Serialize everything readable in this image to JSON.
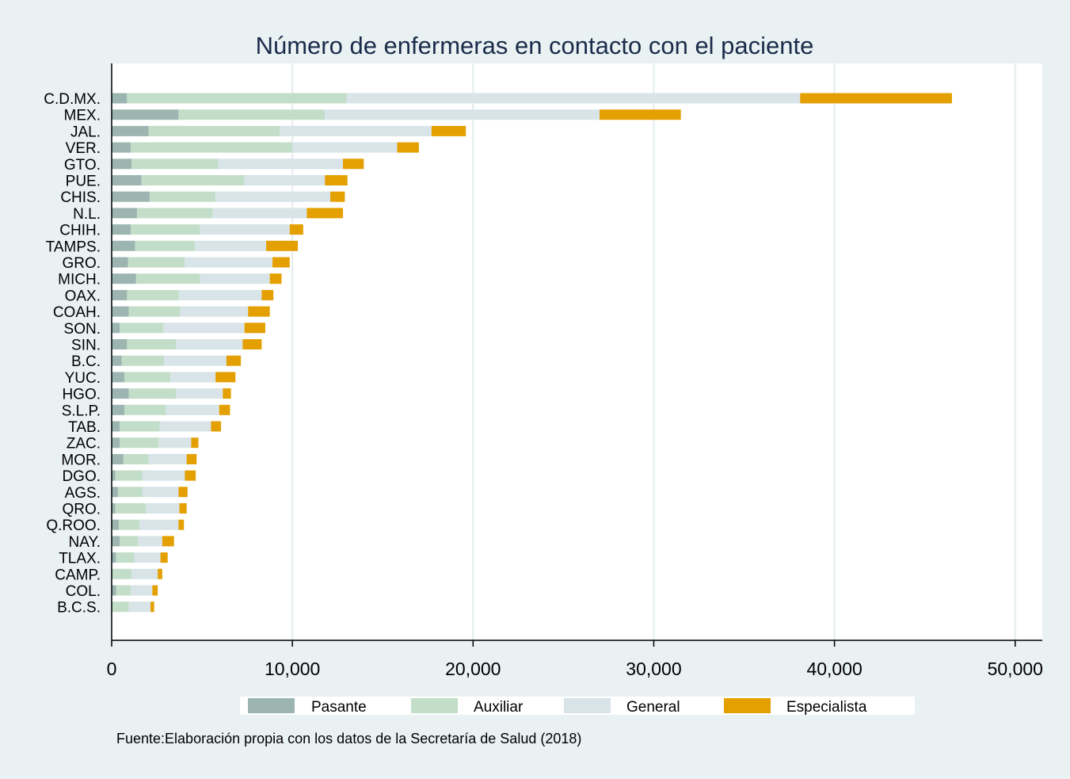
{
  "chart_data": {
    "type": "bar",
    "orientation": "horizontal",
    "stacked": true,
    "title": "Número de enfermeras en contacto con el paciente",
    "source": "Fuente:Elaboración propia con los datos de la Secretaría de Salud (2018)",
    "categories": [
      "C.D.MX.",
      "MEX.",
      "JAL.",
      "VER.",
      "GTO.",
      "PUE.",
      "CHIS.",
      "N.L.",
      "CHIH.",
      "TAMPS.",
      "GRO.",
      "MICH.",
      "OAX.",
      "COAH.",
      "SON.",
      "SIN.",
      "B.C.",
      "YUC.",
      "HGO.",
      "S.L.P.",
      "TAB.",
      "ZAC.",
      "MOR.",
      "DGO.",
      "AGS.",
      "QRO.",
      "Q.ROO.",
      "NAY.",
      "TLAX.",
      "CAMP.",
      "COL.",
      "B.C.S."
    ],
    "series": [
      {
        "name": "Pasante",
        "color": "#9cb5b0",
        "values": [
          850,
          3700,
          2050,
          1050,
          1100,
          1650,
          2100,
          1400,
          1050,
          1300,
          900,
          1350,
          850,
          950,
          450,
          850,
          550,
          700,
          950,
          700,
          450,
          450,
          650,
          200,
          350,
          200,
          400,
          450,
          250,
          50,
          250,
          50
        ]
      },
      {
        "name": "Auxiliar",
        "color": "#c3dec8",
        "values": [
          12150,
          8100,
          7250,
          8950,
          4800,
          5700,
          3650,
          4200,
          3850,
          3300,
          3150,
          3550,
          2850,
          2850,
          2400,
          2700,
          2350,
          2550,
          2600,
          2300,
          2200,
          2150,
          1400,
          1500,
          1350,
          1700,
          1150,
          1000,
          1000,
          1050,
          800,
          900
        ]
      },
      {
        "name": "General",
        "color": "#d8e4e8",
        "values": [
          25100,
          15200,
          8400,
          5800,
          6900,
          4450,
          6350,
          5200,
          4950,
          3950,
          4850,
          3850,
          4600,
          3750,
          4500,
          3700,
          3450,
          2500,
          2600,
          2950,
          2850,
          1800,
          2100,
          2350,
          2000,
          1850,
          2150,
          1350,
          1450,
          1450,
          1200,
          1200
        ]
      },
      {
        "name": "Especialista",
        "color": "#e49f00",
        "values": [
          8400,
          4500,
          1900,
          1200,
          1150,
          1250,
          800,
          2000,
          750,
          1750,
          950,
          650,
          650,
          1200,
          1150,
          1050,
          800,
          1100,
          450,
          600,
          550,
          400,
          550,
          600,
          500,
          400,
          300,
          650,
          400,
          250,
          300,
          200
        ]
      }
    ],
    "xlim": [
      0,
      51500
    ],
    "xticks": [
      0,
      10000,
      20000,
      30000,
      40000,
      50000
    ],
    "xtick_labels": [
      "0",
      "10,000",
      "20,000",
      "30,000",
      "40,000",
      "50,000"
    ],
    "grid": true,
    "legend_position": "bottom"
  }
}
